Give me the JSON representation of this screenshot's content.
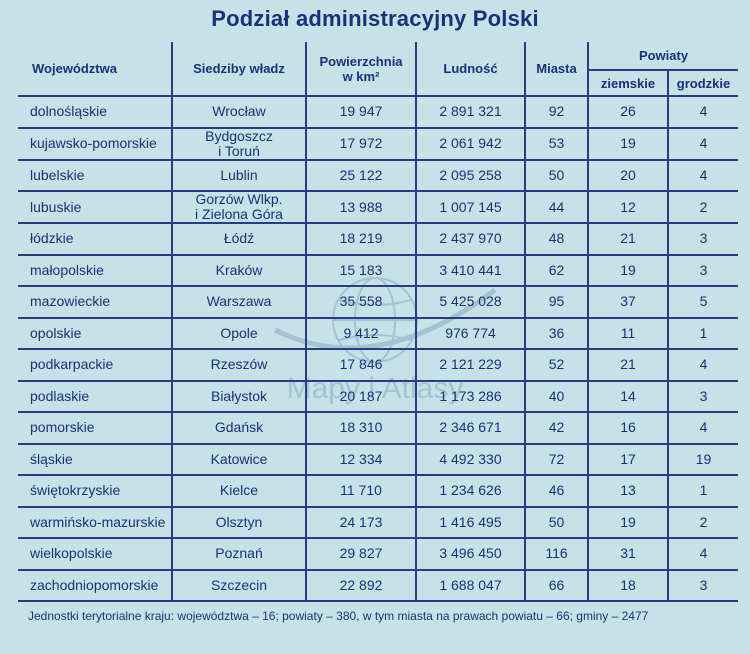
{
  "title": "Podział administracyjny Polski",
  "headers": {
    "wojewodztwa": "Województwa",
    "siedziby": "Siedziby władz",
    "powierzchnia": "Powierzchnia\nw km²",
    "ludnosc": "Ludność",
    "miasta": "Miasta",
    "powiaty": "Powiaty",
    "ziemskie": "ziemskie",
    "grodzkie": "grodzkie"
  },
  "rows": [
    {
      "woj": "dolnośląskie",
      "siedziba": "Wrocław",
      "pow": "19 947",
      "lud": "2 891 321",
      "mia": "92",
      "zie": "26",
      "gro": "4"
    },
    {
      "woj": "kujawsko-pomorskie",
      "siedziba": "Bydgoszcz\ni Toruń",
      "pow": "17 972",
      "lud": "2 061 942",
      "mia": "53",
      "zie": "19",
      "gro": "4"
    },
    {
      "woj": "lubelskie",
      "siedziba": "Lublin",
      "pow": "25 122",
      "lud": "2 095 258",
      "mia": "50",
      "zie": "20",
      "gro": "4"
    },
    {
      "woj": "lubuskie",
      "siedziba": "Gorzów Wlkp.\ni Zielona Góra",
      "pow": "13 988",
      "lud": "1 007 145",
      "mia": "44",
      "zie": "12",
      "gro": "2"
    },
    {
      "woj": "łódzkie",
      "siedziba": "Łódź",
      "pow": "18 219",
      "lud": "2 437 970",
      "mia": "48",
      "zie": "21",
      "gro": "3"
    },
    {
      "woj": "małopolskie",
      "siedziba": "Kraków",
      "pow": "15 183",
      "lud": "3 410 441",
      "mia": "62",
      "zie": "19",
      "gro": "3"
    },
    {
      "woj": "mazowieckie",
      "siedziba": "Warszawa",
      "pow": "35 558",
      "lud": "5 425 028",
      "mia": "95",
      "zie": "37",
      "gro": "5"
    },
    {
      "woj": "opolskie",
      "siedziba": "Opole",
      "pow": "9 412",
      "lud": "976 774",
      "mia": "36",
      "zie": "11",
      "gro": "1"
    },
    {
      "woj": "podkarpackie",
      "siedziba": "Rzeszów",
      "pow": "17 846",
      "lud": "2 121 229",
      "mia": "52",
      "zie": "21",
      "gro": "4"
    },
    {
      "woj": "podlaskie",
      "siedziba": "Białystok",
      "pow": "20 187",
      "lud": "1 173 286",
      "mia": "40",
      "zie": "14",
      "gro": "3"
    },
    {
      "woj": "pomorskie",
      "siedziba": "Gdańsk",
      "pow": "18 310",
      "lud": "2 346 671",
      "mia": "42",
      "zie": "16",
      "gro": "4"
    },
    {
      "woj": "śląskie",
      "siedziba": "Katowice",
      "pow": "12 334",
      "lud": "4 492 330",
      "mia": "72",
      "zie": "17",
      "gro": "19"
    },
    {
      "woj": "świętokrzyskie",
      "siedziba": "Kielce",
      "pow": "11 710",
      "lud": "1 234 626",
      "mia": "46",
      "zie": "13",
      "gro": "1"
    },
    {
      "woj": "warmińsko-mazurskie",
      "siedziba": "Olsztyn",
      "pow": "24 173",
      "lud": "1 416 495",
      "mia": "50",
      "zie": "19",
      "gro": "2"
    },
    {
      "woj": "wielkopolskie",
      "siedziba": "Poznań",
      "pow": "29 827",
      "lud": "3 496 450",
      "mia": "116",
      "zie": "31",
      "gro": "4"
    },
    {
      "woj": "zachodniopomorskie",
      "siedziba": "Szczecin",
      "pow": "22 892",
      "lud": "1 688 047",
      "mia": "66",
      "zie": "18",
      "gro": "3"
    }
  ],
  "footnote": "Jednostki terytorialne kraju: województwa – 16; powiaty – 380, w tym miasta na prawach powiatu – 66; gminy – 2477",
  "watermark": "Mapy i Atlasy",
  "colors": {
    "background": "#c6e2e6",
    "text": "#1c2f7c",
    "lines": "#2a3a86"
  }
}
